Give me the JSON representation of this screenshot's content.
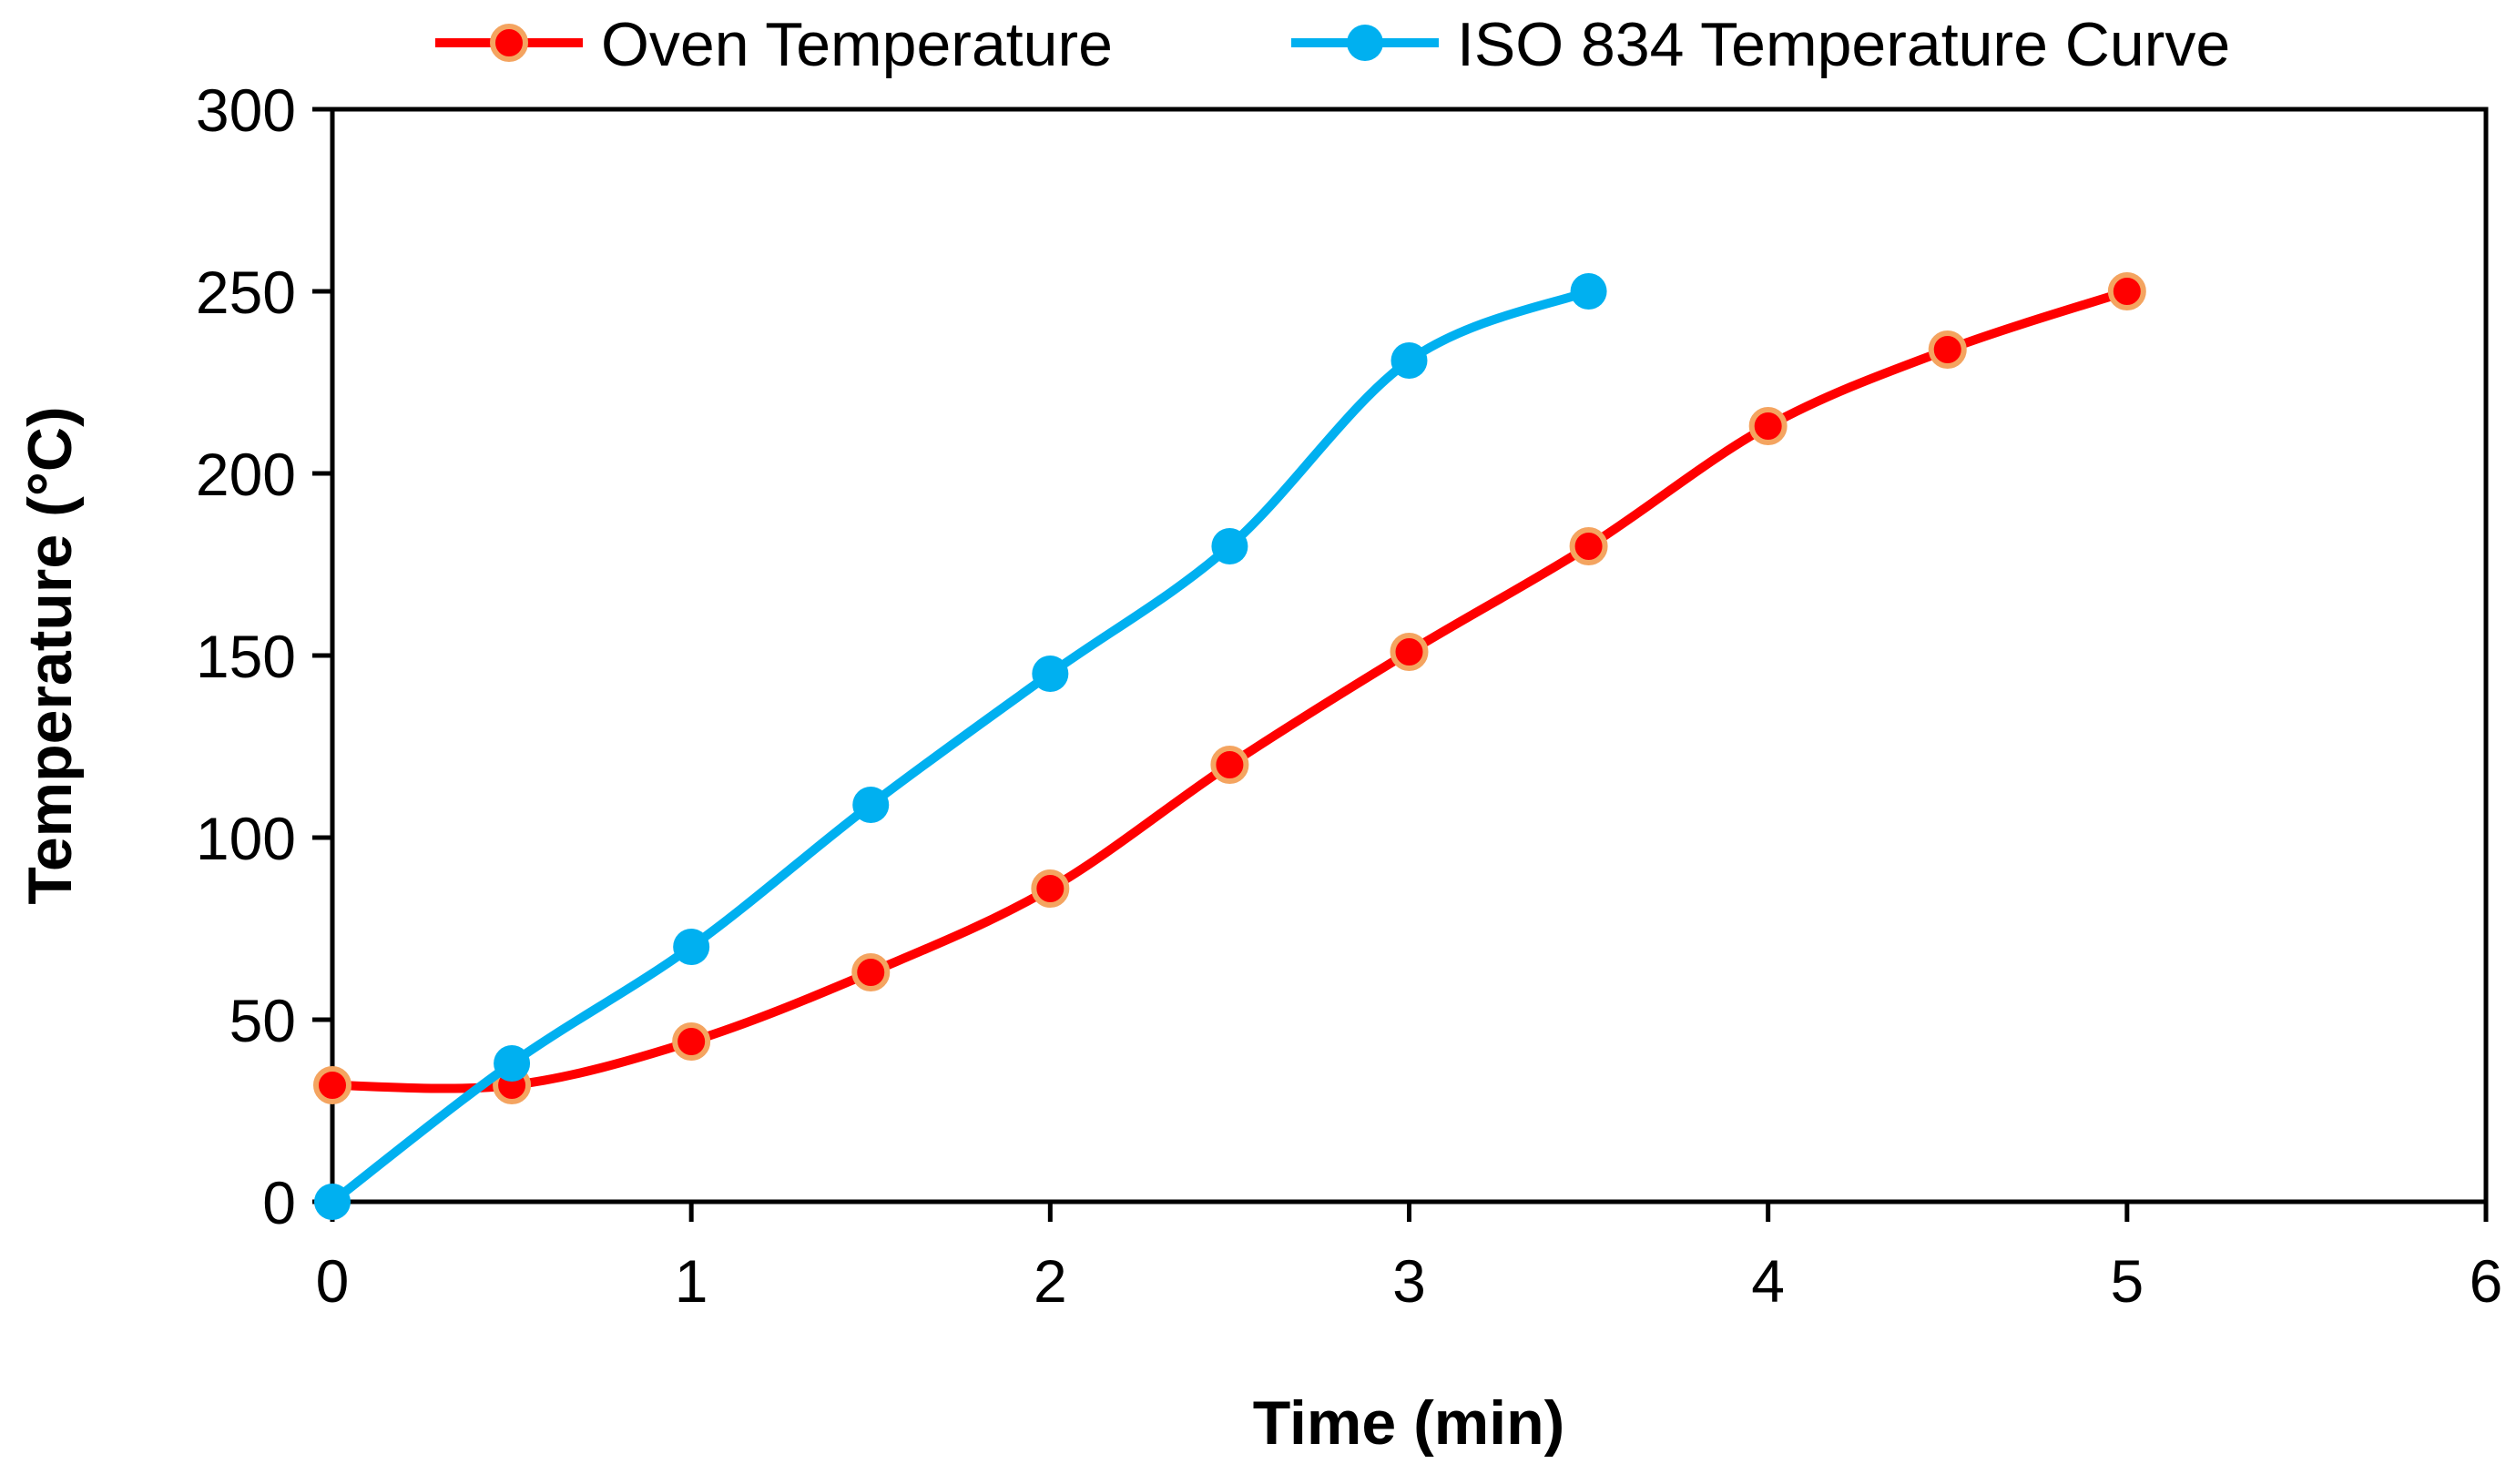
{
  "chart_data": {
    "type": "line",
    "title": "",
    "xlabel": "Time (min)",
    "ylabel": "Temperature (°C)",
    "xlim": [
      0,
      6
    ],
    "ylim": [
      0,
      300
    ],
    "x_ticks": [
      0,
      1,
      2,
      3,
      4,
      5,
      6
    ],
    "y_ticks": [
      0,
      50,
      100,
      150,
      200,
      250,
      300
    ],
    "grid": false,
    "legend_position": "top-center",
    "series": [
      {
        "name": "Oven Temperature",
        "color": "#ff0000",
        "marker_edge": "#f4a460",
        "x": [
          0,
          0.5,
          1,
          1.5,
          2,
          2.5,
          3,
          3.5,
          4,
          4.5,
          5
        ],
        "y": [
          32,
          32,
          44,
          63,
          86,
          120,
          151,
          180,
          213,
          234,
          250
        ]
      },
      {
        "name": "ISO 834 Temperature Curve",
        "color": "#00b0f0",
        "marker_edge": "#00b0f0",
        "x": [
          0,
          0.5,
          1,
          1.5,
          2,
          2.5,
          3,
          3.5
        ],
        "y": [
          0,
          38,
          70,
          109,
          145,
          180,
          231,
          250
        ]
      }
    ]
  }
}
